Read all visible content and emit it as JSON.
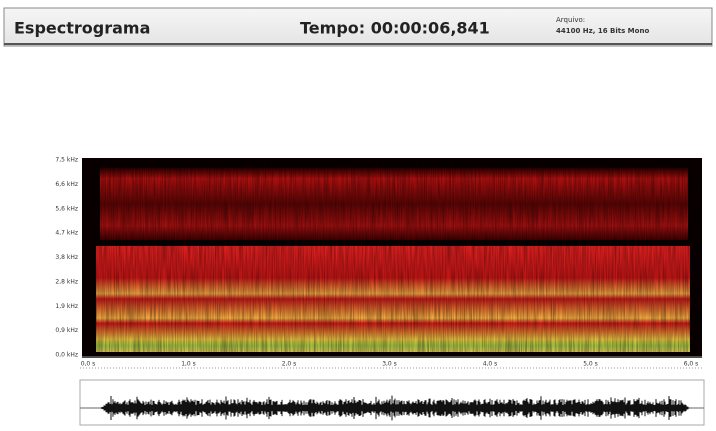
{
  "header": {
    "title": "Espectrograma",
    "time": "Tempo: 00:00:06,841",
    "file_label": "Arquivo:",
    "file_info": "44100 Hz, 16 Bits Mono"
  },
  "spectrogram": {
    "y_labels": [
      "7,5 kHz",
      "6,6 kHz",
      "5,6 kHz",
      "4,7 kHz",
      "3,8 kHz",
      "2,8 kHz",
      "1,9 kHz",
      "0,9 kHz",
      "0,0 kHz"
    ],
    "x_labels": [
      "0,0 s",
      "1,0 s",
      "2,0 s",
      "3,0 s",
      "4,0 s",
      "5,0 s",
      "6,0 s"
    ]
  }
}
